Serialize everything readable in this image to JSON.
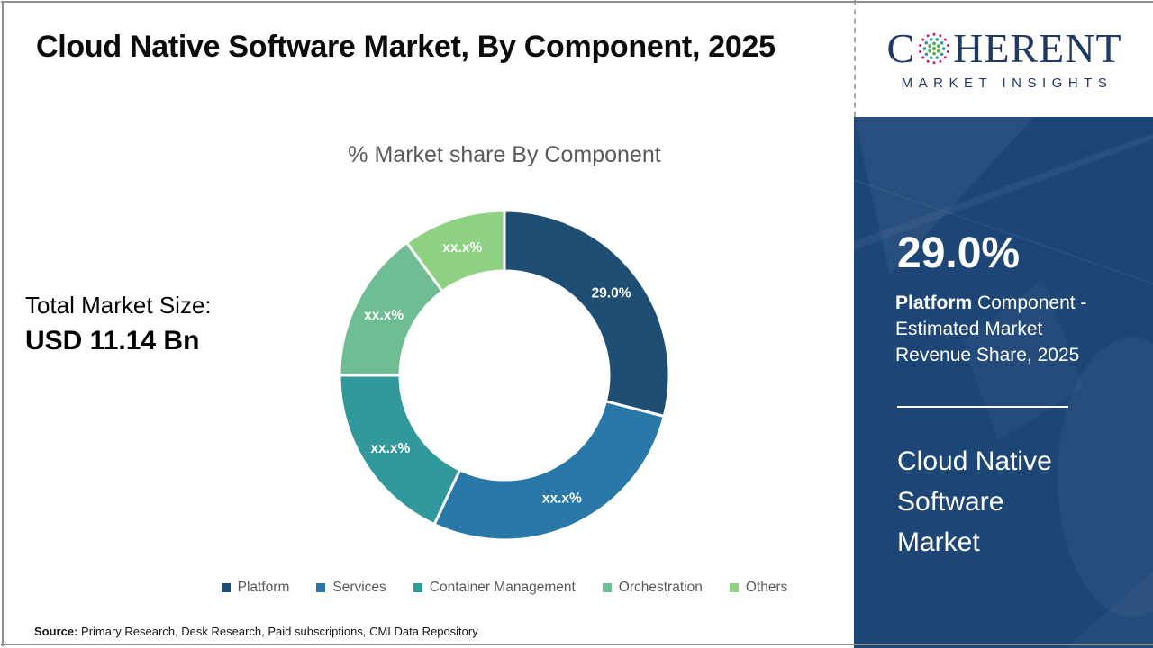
{
  "header": {
    "title": "Cloud Native Software Market, By Component, 2025"
  },
  "left_panel": {
    "total_label": "Total Market Size:",
    "total_value": "USD 11.14 Bn"
  },
  "chart_data": {
    "type": "pie",
    "donut": true,
    "title": "% Market share By Component",
    "categories": [
      "Platform",
      "Services",
      "Container Management",
      "Orchestration",
      "Others"
    ],
    "values": [
      29.0,
      28.0,
      18.0,
      14.9,
      10.1
    ],
    "slice_labels": [
      "29.0%",
      "xx.x%",
      "xx.x%",
      "xx.x%",
      "xx.x%"
    ],
    "colors": [
      "#1f4e74",
      "#2a78a8",
      "#31999b",
      "#6fbe93",
      "#8fd183"
    ],
    "slice_label_color": "#ffffff",
    "slice_stroke": "#ffffff",
    "legend_position": "bottom",
    "legend_text_color": "#595959",
    "start_angle_deg": 0,
    "direction": "clockwise"
  },
  "sidebar": {
    "stat_value": "29.0%",
    "stat_desc_bold": "Platform",
    "stat_desc_rest": " Component - Estimated Market Revenue Share, 2025",
    "market_name": "Cloud Native Software Market",
    "background": "#1d4677"
  },
  "logo": {
    "word_start": "C",
    "word_end": "HERENT",
    "subtitle": "MARKET INSIGHTS",
    "navy": "#1f3864",
    "dot_outer": "#c0267c",
    "dot_mid": "#2b9daa",
    "dot_inner": "#52ae4f"
  },
  "footer": {
    "source_label": "Source:",
    "source_text": " Primary Research, Desk Research, Paid subscriptions, CMI Data Repository"
  }
}
